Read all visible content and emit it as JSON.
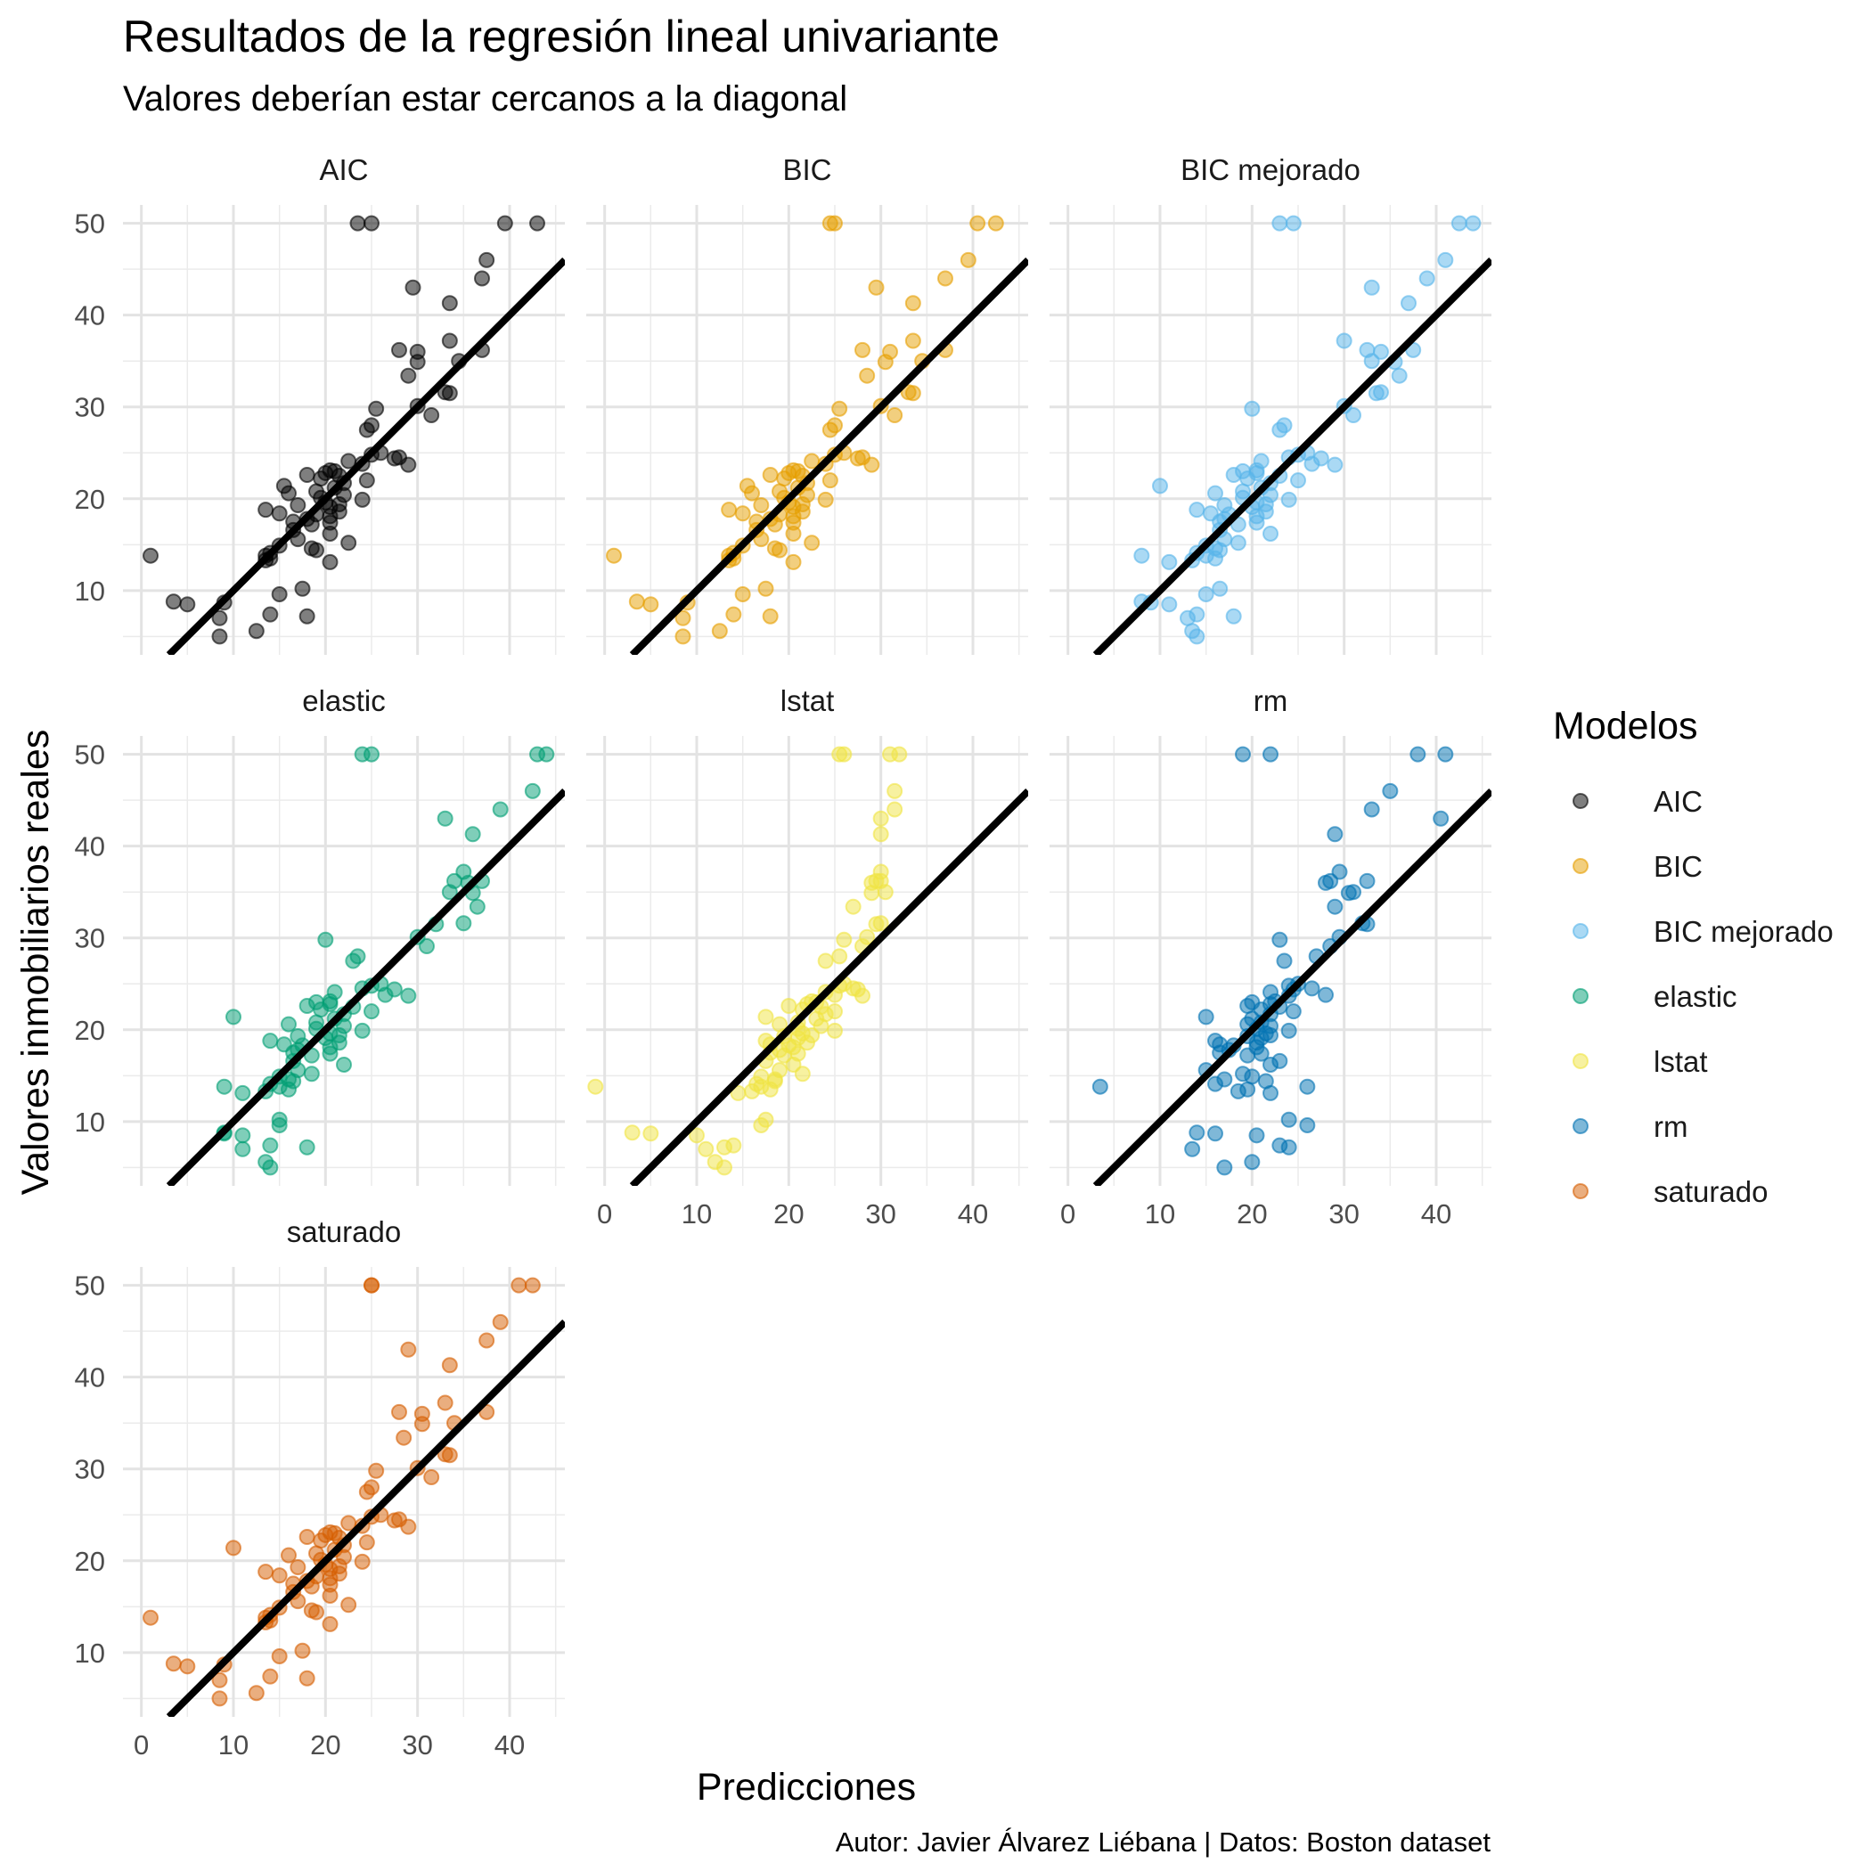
{
  "chart_data": {
    "type": "scatter",
    "title": "Resultados de la regresión lineal univariante",
    "subtitle": "Valores deberían estar cercanos a la diagonal",
    "xlabel": "Predicciones",
    "ylabel": "Valores inmobiliarios reales",
    "caption": "Autor: Javier Álvarez Liébana | Datos: Boston dataset",
    "legend_title": "Modelos",
    "legend_position": "right",
    "xlim": [
      -2,
      46
    ],
    "ylim": [
      3,
      52
    ],
    "x_ticks": [
      0,
      10,
      20,
      30,
      40
    ],
    "y_ticks": [
      10,
      20,
      30,
      40,
      50
    ],
    "x_tick_labels": [
      "0",
      "10",
      "20",
      "30",
      "40"
    ],
    "y_tick_labels": [
      "10",
      "20",
      "30",
      "40",
      "50"
    ],
    "reference_line": "y = x",
    "grid": true,
    "actual": [
      50,
      50,
      50,
      50,
      46,
      44,
      43,
      41.3,
      37.2,
      36.2,
      36.2,
      36,
      35,
      34.9,
      33.4,
      31.6,
      31.5,
      30.1,
      29.8,
      29.1,
      28,
      27.5,
      25,
      24.8,
      24.5,
      24.4,
      24.1,
      23.8,
      23.7,
      23.1,
      23,
      22.8,
      22.6,
      22.5,
      22.2,
      22,
      21.7,
      21.4,
      21.2,
      20.8,
      20.6,
      20.4,
      20.1,
      19.9,
      19.6,
      19.4,
      19.3,
      19.1,
      18.8,
      18.6,
      18.4,
      18.3,
      18.1,
      17.8,
      17.5,
      17.4,
      17.2,
      16.6,
      16.2,
      15.6,
      15.2,
      14.9,
      14.6,
      14.4,
      14.1,
      13.8,
      13.5,
      13.3,
      13.1,
      10.2,
      9.6,
      8.8,
      8.7,
      8.5,
      7.4,
      7.2,
      7,
      5.6,
      5,
      13.8
    ],
    "series": [
      {
        "name": "AIC",
        "color": "#000000",
        "x": [
          23.5,
          25,
          39.5,
          43,
          37.5,
          37,
          29.5,
          33.5,
          33.5,
          28,
          37,
          30,
          34.5,
          30,
          29,
          33,
          33.5,
          30,
          25.5,
          31.5,
          25,
          24.5,
          26,
          25,
          28,
          27.5,
          22.5,
          24,
          29,
          20.5,
          21,
          20,
          18,
          21.5,
          19.5,
          24.5,
          22,
          15.5,
          21,
          19,
          16,
          22,
          19.5,
          24,
          20,
          21.5,
          17,
          20.5,
          13.5,
          21.5,
          15,
          19,
          20.5,
          18,
          16.5,
          20.5,
          18.5,
          16.5,
          20.5,
          17,
          22.5,
          15,
          18.5,
          19,
          14,
          13.5,
          14,
          13.5,
          20.5,
          17.5,
          15,
          3.5,
          9,
          5,
          14,
          18,
          8.5,
          12.5,
          8.5,
          1
        ]
      },
      {
        "name": "BIC",
        "color": "#E69F00",
        "x": [
          24.5,
          25,
          40.5,
          42.5,
          39.5,
          37,
          29.5,
          33.5,
          33.5,
          28,
          37,
          31,
          34.5,
          30.5,
          28.5,
          33,
          33.5,
          30,
          25.5,
          31.5,
          25,
          24.5,
          26,
          25,
          28,
          27.5,
          22.5,
          24,
          29,
          20.5,
          21,
          20,
          18,
          21.5,
          19.5,
          24.5,
          22,
          15.5,
          21,
          19,
          16,
          22,
          19.5,
          24,
          20,
          21.5,
          17,
          20.5,
          13.5,
          21.5,
          15,
          19,
          20.5,
          18,
          16.5,
          20.5,
          18.5,
          16.5,
          20.5,
          17,
          22.5,
          15,
          18.5,
          19,
          14,
          13.5,
          14,
          13.5,
          20.5,
          17.5,
          15,
          3.5,
          9,
          5,
          14,
          18,
          8.5,
          12.5,
          8.5,
          1
        ]
      },
      {
        "name": "BIC mejorado",
        "color": "#56B4E9",
        "x": [
          23,
          24.5,
          42.5,
          44,
          41,
          39,
          33,
          37,
          30,
          32.5,
          37.5,
          34,
          33,
          35.5,
          36,
          34,
          33.5,
          30,
          20,
          31,
          23.5,
          23,
          26,
          25,
          24,
          27.5,
          21,
          26.5,
          29,
          20.5,
          19,
          20.5,
          18,
          23,
          19.5,
          25,
          22,
          10,
          21,
          19,
          16,
          22,
          19,
          24,
          20.5,
          21.5,
          17,
          20,
          14,
          21.5,
          15.5,
          17.5,
          20.5,
          17,
          16.5,
          20.5,
          18.5,
          16.5,
          22,
          17,
          18.5,
          15,
          16,
          16.5,
          14,
          15,
          16,
          13.5,
          11,
          16.5,
          15,
          8,
          9,
          11,
          14,
          18,
          13,
          13.5,
          14,
          8
        ]
      },
      {
        "name": "elastic",
        "color": "#009E73",
        "x": [
          24,
          25,
          43,
          44,
          42.5,
          39,
          33,
          36,
          35,
          34,
          37,
          35.5,
          33.5,
          36,
          36.5,
          35,
          32,
          30,
          20,
          31,
          23.5,
          23,
          26,
          25,
          24,
          27.5,
          21,
          26.5,
          29,
          20.5,
          19,
          20.5,
          18,
          23,
          19.5,
          25,
          22,
          10,
          21,
          19,
          16,
          22,
          19,
          24,
          20.5,
          21.5,
          17,
          20,
          14,
          21.5,
          15.5,
          17.5,
          20.5,
          17,
          16.5,
          20.5,
          18.5,
          16.5,
          22,
          17,
          18.5,
          15,
          16,
          16.5,
          14,
          15,
          16,
          13.5,
          11,
          15,
          15,
          9,
          9,
          11,
          14,
          18,
          11,
          13.5,
          14,
          9
        ]
      },
      {
        "name": "lstat",
        "color": "#F0E442",
        "x": [
          25.5,
          26,
          31,
          32,
          31.5,
          31.5,
          30,
          30,
          30,
          29.5,
          30,
          29,
          30.5,
          29,
          27,
          30,
          29.5,
          28.5,
          26,
          28,
          25.5,
          24,
          26,
          25.5,
          27,
          27.5,
          24,
          25,
          28,
          22.5,
          23,
          22,
          20,
          23.5,
          21.5,
          25,
          24,
          17.5,
          23,
          21,
          19,
          23.5,
          21,
          25,
          21.5,
          22.5,
          19.5,
          21,
          17.5,
          22,
          18,
          20,
          20.5,
          19,
          18,
          21,
          19.5,
          17.5,
          20.5,
          19,
          21.5,
          17,
          18.5,
          18.5,
          16.5,
          17,
          18,
          16,
          14.5,
          17.5,
          17,
          3,
          5,
          10,
          14,
          13,
          11,
          12,
          13,
          -1
        ]
      },
      {
        "name": "rm",
        "color": "#0072B2",
        "x": [
          19,
          22,
          38,
          41,
          35,
          33,
          40.5,
          29,
          29.5,
          28.5,
          32.5,
          28,
          31,
          30.5,
          29,
          32,
          32.5,
          29.5,
          23,
          28.5,
          27,
          23.5,
          25,
          24,
          26.5,
          24.5,
          22,
          28,
          24,
          22.5,
          20,
          22,
          19.5,
          23,
          21,
          24.5,
          22,
          15,
          20,
          21,
          19.5,
          22,
          20.5,
          24,
          21.5,
          22,
          19.5,
          21,
          16,
          20.5,
          16.5,
          18,
          20.5,
          17.5,
          16.5,
          21,
          19.5,
          23,
          22,
          15,
          19,
          20,
          17,
          21.5,
          16,
          26,
          19.5,
          18.5,
          22,
          24,
          26,
          14,
          16,
          20.5,
          23,
          24,
          13.5,
          20,
          17,
          3.5
        ]
      },
      {
        "name": "saturado",
        "color": "#D55E00",
        "x": [
          25,
          25,
          41,
          42.5,
          39,
          37.5,
          29,
          33.5,
          33,
          28,
          37.5,
          30.5,
          34,
          30.5,
          28.5,
          33,
          33.5,
          30,
          25.5,
          31.5,
          25,
          24.5,
          26,
          25,
          28,
          27.5,
          22.5,
          24,
          29,
          20.5,
          21,
          20,
          18,
          21.5,
          19.5,
          24.5,
          22,
          10,
          21,
          19,
          16,
          22,
          19.5,
          24,
          20,
          21.5,
          17,
          20.5,
          13.5,
          21.5,
          15,
          19,
          20.5,
          18,
          16.5,
          20.5,
          18.5,
          16.5,
          20.5,
          17,
          22.5,
          15,
          18.5,
          19,
          14,
          13.5,
          14,
          13.5,
          20.5,
          17.5,
          15,
          3.5,
          9,
          5,
          14,
          18,
          8.5,
          12.5,
          8.5,
          1
        ]
      }
    ]
  }
}
